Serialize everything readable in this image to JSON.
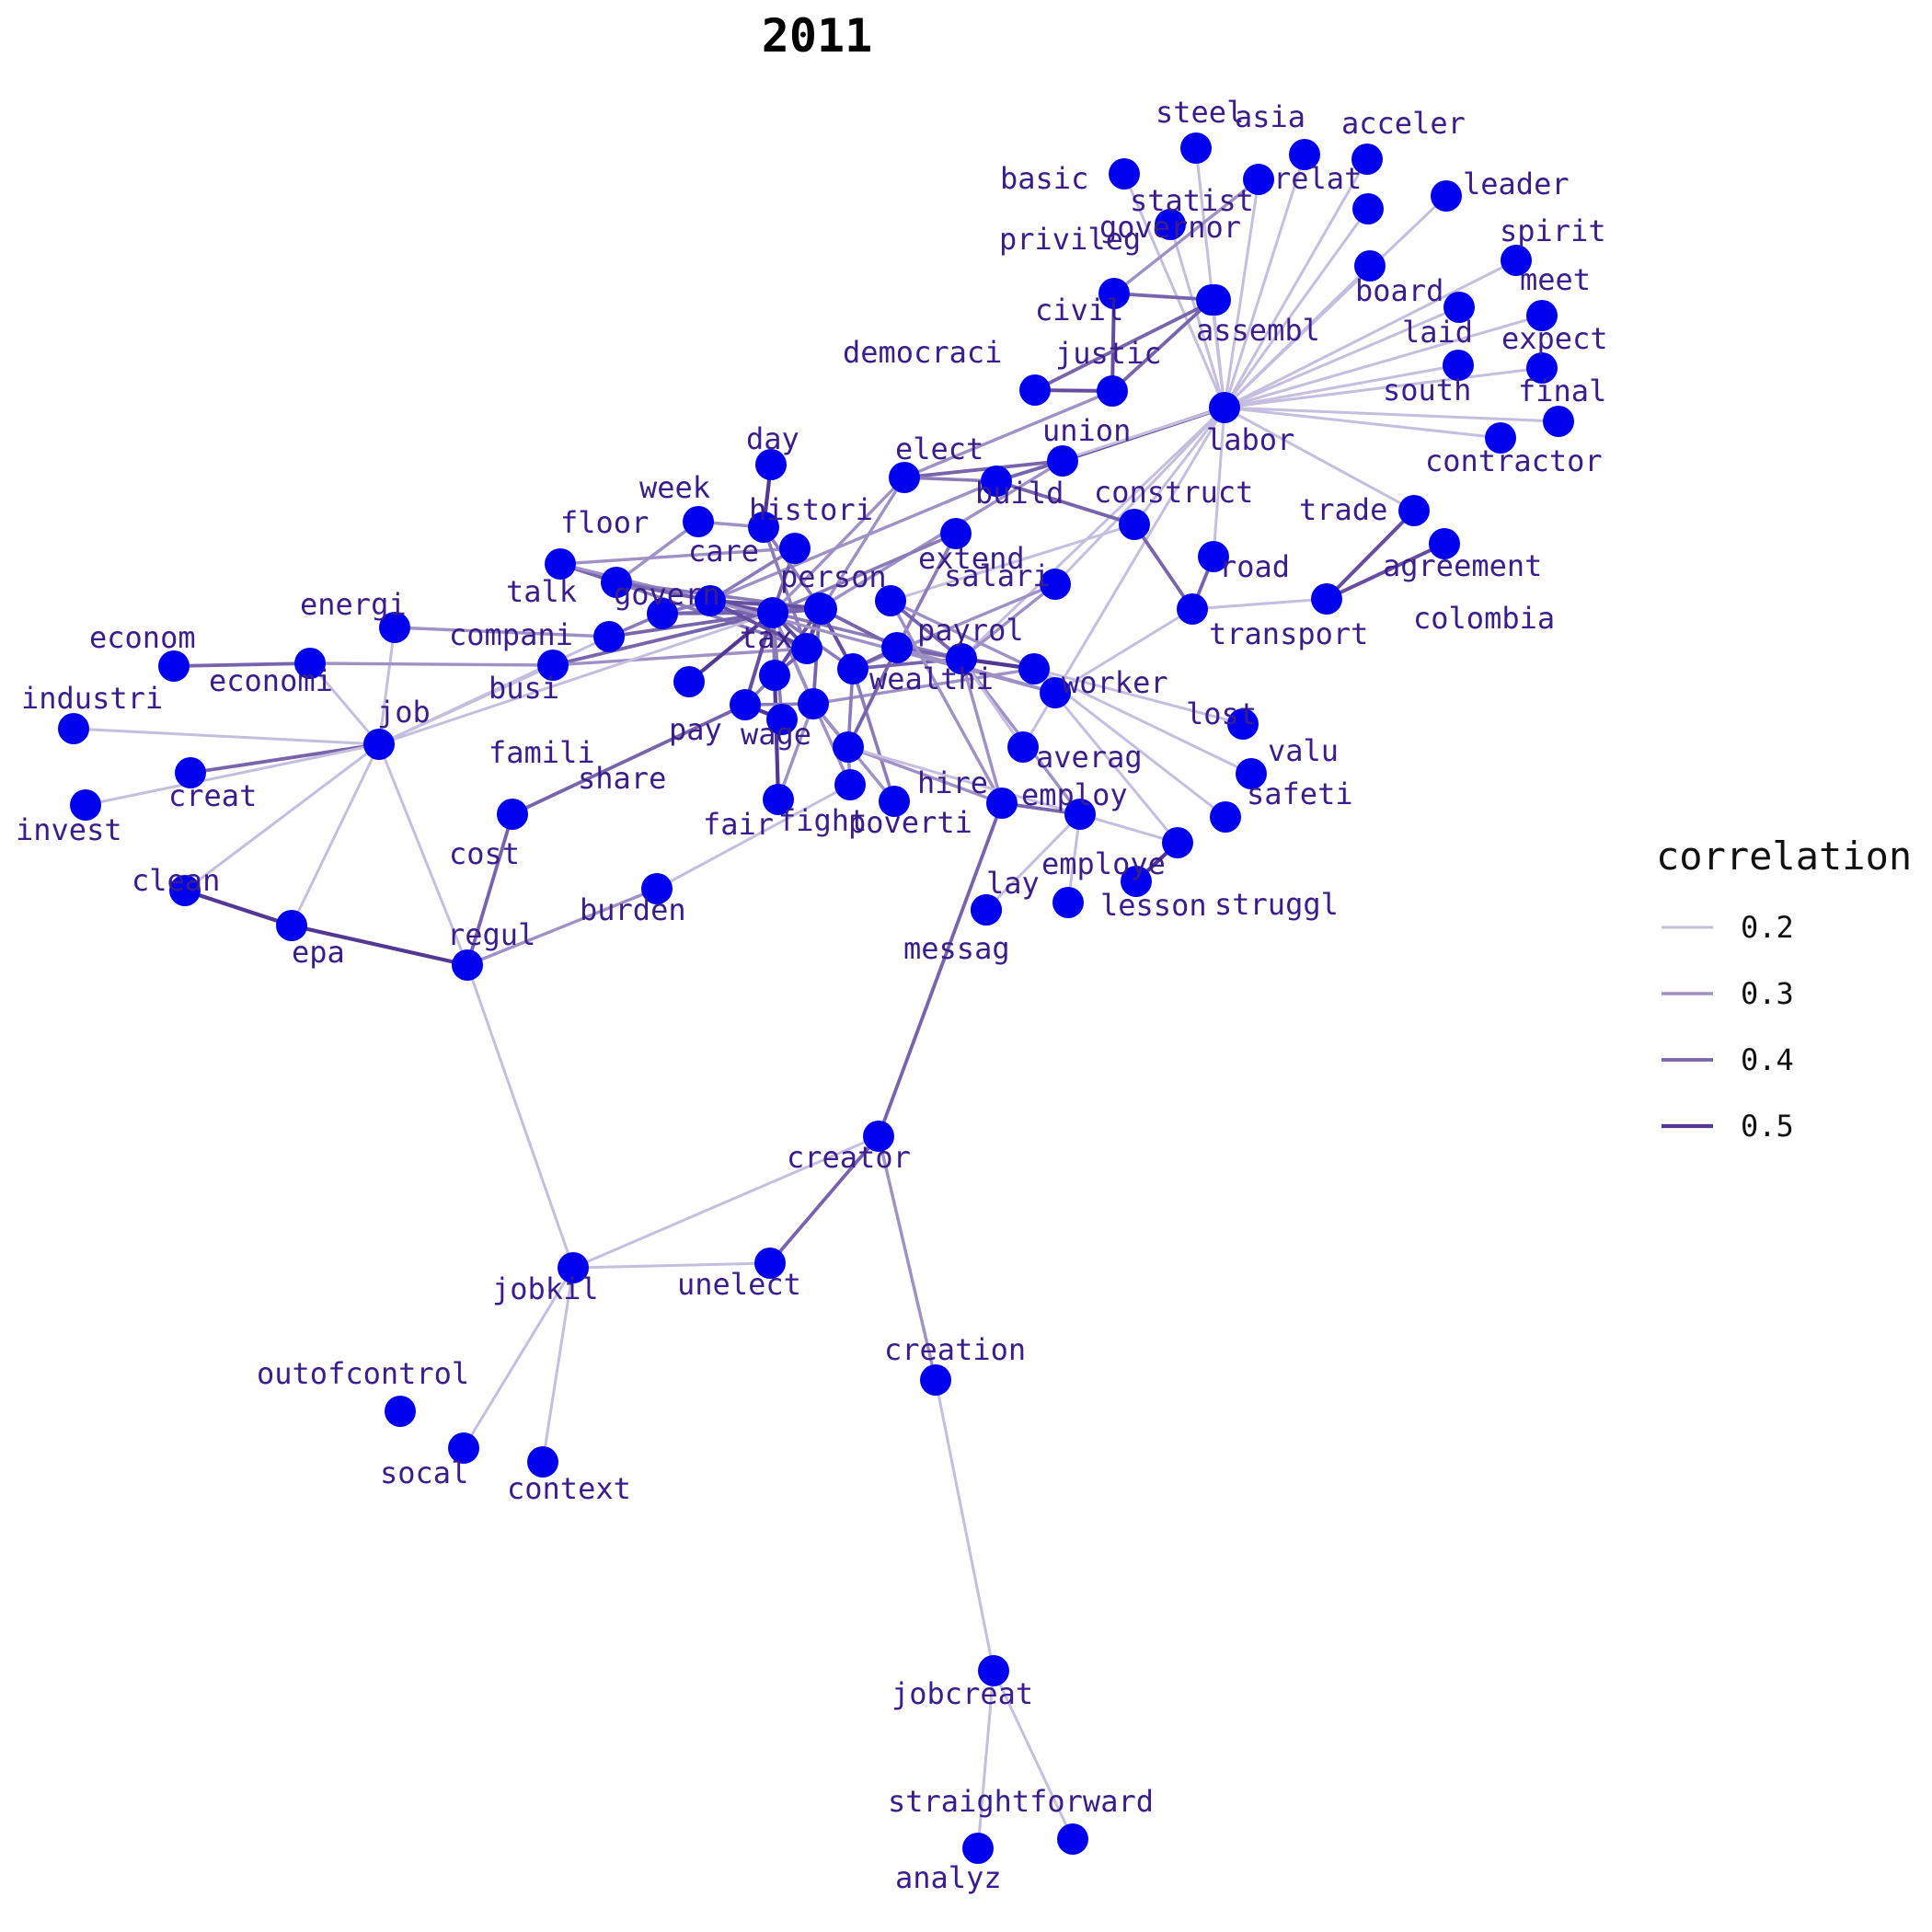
{
  "title": "2011",
  "colors": {
    "node": "#0000ee",
    "label": "#3a1d8c",
    "edge_min": "#d8d4ea",
    "edge_max": "#3f2188"
  },
  "legend": {
    "title": "correlation",
    "items": [
      {
        "label": "0.2",
        "value": 0.2
      },
      {
        "label": "0.3",
        "value": 0.3
      },
      {
        "label": "0.4",
        "value": 0.4
      },
      {
        "label": "0.5",
        "value": 0.5
      }
    ]
  },
  "nodes": [
    {
      "id": "steel",
      "label": "steel"
    },
    {
      "id": "asia",
      "label": "asia"
    },
    {
      "id": "acceler",
      "label": "acceler"
    },
    {
      "id": "basic",
      "label": "basic"
    },
    {
      "id": "statist",
      "label": "statist"
    },
    {
      "id": "relat",
      "label": "relat"
    },
    {
      "id": "leader",
      "label": "leader"
    },
    {
      "id": "spirit",
      "label": "spirit"
    },
    {
      "id": "governor",
      "label": "governor"
    },
    {
      "id": "privileg",
      "label": "privileg"
    },
    {
      "id": "board",
      "label": "board"
    },
    {
      "id": "meet",
      "label": "meet"
    },
    {
      "id": "civil",
      "label": "civil"
    },
    {
      "id": "assembl",
      "label": "assembl"
    },
    {
      "id": "laid",
      "label": "laid"
    },
    {
      "id": "expect",
      "label": "expect"
    },
    {
      "id": "democraci",
      "label": "democraci"
    },
    {
      "id": "justic",
      "label": "justic"
    },
    {
      "id": "south",
      "label": "south"
    },
    {
      "id": "final",
      "label": "final"
    },
    {
      "id": "labor",
      "label": "labor"
    },
    {
      "id": "union",
      "label": "union"
    },
    {
      "id": "contractor",
      "label": "contractor"
    },
    {
      "id": "day",
      "label": "day"
    },
    {
      "id": "elect",
      "label": "elect"
    },
    {
      "id": "week",
      "label": "week"
    },
    {
      "id": "histori",
      "label": "histori"
    },
    {
      "id": "build",
      "label": "build"
    },
    {
      "id": "construct",
      "label": "construct"
    },
    {
      "id": "trade",
      "label": "trade"
    },
    {
      "id": "floor",
      "label": "floor"
    },
    {
      "id": "care",
      "label": "care"
    },
    {
      "id": "extend",
      "label": "extend"
    },
    {
      "id": "salari",
      "label": "salari"
    },
    {
      "id": "agreement",
      "label": "agreement"
    },
    {
      "id": "talk",
      "label": "talk"
    },
    {
      "id": "person",
      "label": "person"
    },
    {
      "id": "road",
      "label": "road"
    },
    {
      "id": "energi",
      "label": "energi"
    },
    {
      "id": "govern",
      "label": "govern"
    },
    {
      "id": "colombia",
      "label": "colombia"
    },
    {
      "id": "econom",
      "label": "econom"
    },
    {
      "id": "compani",
      "label": "compani"
    },
    {
      "id": "payrol",
      "label": "payrol"
    },
    {
      "id": "worker",
      "label": "worker"
    },
    {
      "id": "transport",
      "label": "transport"
    },
    {
      "id": "tax",
      "label": "tax"
    },
    {
      "id": "busi",
      "label": "busi"
    },
    {
      "id": "economi",
      "label": "economi"
    },
    {
      "id": "wealthi",
      "label": "wealthi"
    },
    {
      "id": "industri",
      "label": "industri"
    },
    {
      "id": "averag",
      "label": "averag"
    },
    {
      "id": "lost",
      "label": "lost"
    },
    {
      "id": "job",
      "label": "job"
    },
    {
      "id": "pay",
      "label": "pay"
    },
    {
      "id": "famili",
      "label": "famili"
    },
    {
      "id": "share",
      "label": "share"
    },
    {
      "id": "wage",
      "label": "wage"
    },
    {
      "id": "valu",
      "label": "valu"
    },
    {
      "id": "fair",
      "label": "fair"
    },
    {
      "id": "creat",
      "label": "creat"
    },
    {
      "id": "hire",
      "label": "hire"
    },
    {
      "id": "employ",
      "label": "employ"
    },
    {
      "id": "safeti",
      "label": "safeti"
    },
    {
      "id": "fight",
      "label": "fight"
    },
    {
      "id": "poverti",
      "label": "poverti"
    },
    {
      "id": "cost",
      "label": "cost"
    },
    {
      "id": "invest",
      "label": "invest"
    },
    {
      "id": "employe",
      "label": "employe"
    },
    {
      "id": "struggl",
      "label": "struggl"
    },
    {
      "id": "clean",
      "label": "clean"
    },
    {
      "id": "lay",
      "label": "lay"
    },
    {
      "id": "lesson",
      "label": "lesson"
    },
    {
      "id": "burden",
      "label": "burden"
    },
    {
      "id": "epa",
      "label": "epa"
    },
    {
      "id": "messag",
      "label": "messag"
    },
    {
      "id": "regul",
      "label": "regul"
    },
    {
      "id": "creator",
      "label": "creator"
    },
    {
      "id": "jobkil",
      "label": "jobkil"
    },
    {
      "id": "unelect",
      "label": "unelect"
    },
    {
      "id": "creation",
      "label": "creation"
    },
    {
      "id": "outofcontrol",
      "label": "outofcontrol"
    },
    {
      "id": "socal",
      "label": "socal"
    },
    {
      "id": "context",
      "label": "context"
    },
    {
      "id": "jobcreat",
      "label": "jobcreat"
    },
    {
      "id": "straightforward",
      "label": "straightforward"
    },
    {
      "id": "analyz",
      "label": "analyz"
    },
    {
      "id": "hub1",
      "label": ""
    },
    {
      "id": "hub2",
      "label": ""
    },
    {
      "id": "hub3",
      "label": ""
    },
    {
      "id": "hub4",
      "label": ""
    },
    {
      "id": "hub5",
      "label": ""
    },
    {
      "id": "hub6",
      "label": ""
    },
    {
      "id": "hub7",
      "label": ""
    },
    {
      "id": "hub8",
      "label": ""
    }
  ],
  "edges": [
    {
      "source": "labor",
      "target": "steel",
      "weight": 0.2
    },
    {
      "source": "labor",
      "target": "asia",
      "weight": 0.2
    },
    {
      "source": "labor",
      "target": "acceler",
      "weight": 0.2
    },
    {
      "source": "labor",
      "target": "basic",
      "weight": 0.2
    },
    {
      "source": "labor",
      "target": "relat",
      "weight": 0.2
    },
    {
      "source": "labor",
      "target": "leader",
      "weight": 0.2
    },
    {
      "source": "labor",
      "target": "spirit",
      "weight": 0.2
    },
    {
      "source": "labor",
      "target": "governor",
      "weight": 0.2
    },
    {
      "source": "labor",
      "target": "board",
      "weight": 0.2
    },
    {
      "source": "labor",
      "target": "meet",
      "weight": 0.2
    },
    {
      "source": "labor",
      "target": "laid",
      "weight": 0.2
    },
    {
      "source": "labor",
      "target": "expect",
      "weight": 0.2
    },
    {
      "source": "labor",
      "target": "south",
      "weight": 0.2
    },
    {
      "source": "labor",
      "target": "final",
      "weight": 0.2
    },
    {
      "source": "labor",
      "target": "contractor",
      "weight": 0.2
    },
    {
      "source": "labor",
      "target": "assembl",
      "weight": 0.2
    },
    {
      "source": "labor",
      "target": "union",
      "weight": 0.45
    },
    {
      "source": "labor",
      "target": "trade",
      "weight": 0.2
    },
    {
      "source": "labor",
      "target": "construct",
      "weight": 0.2
    },
    {
      "source": "labor",
      "target": "road",
      "weight": 0.2
    },
    {
      "source": "labor",
      "target": "build",
      "weight": 0.2
    },
    {
      "source": "labor",
      "target": "salari",
      "weight": 0.2
    },
    {
      "source": "labor",
      "target": "payrol",
      "weight": 0.2
    },
    {
      "source": "labor",
      "target": "averag",
      "weight": 0.2
    },
    {
      "source": "labor",
      "target": "statist",
      "weight": 0.2
    },
    {
      "source": "statist",
      "target": "privileg",
      "weight": 0.3
    },
    {
      "source": "privileg",
      "target": "civil",
      "weight": 0.4
    },
    {
      "source": "privileg",
      "target": "justic",
      "weight": 0.45
    },
    {
      "source": "civil",
      "target": "democraci",
      "weight": 0.4
    },
    {
      "source": "democraci",
      "target": "justic",
      "weight": 0.45
    },
    {
      "source": "assembl",
      "target": "justic",
      "weight": 0.4
    },
    {
      "source": "justic",
      "target": "elect",
      "weight": 0.3
    },
    {
      "source": "union",
      "target": "elect",
      "weight": 0.4
    },
    {
      "source": "union",
      "target": "build",
      "weight": 0.4
    },
    {
      "source": "union",
      "target": "hub3",
      "weight": 0.3
    },
    {
      "source": "build",
      "target": "construct",
      "weight": 0.4
    },
    {
      "source": "build",
      "target": "elect",
      "weight": 0.35
    },
    {
      "source": "build",
      "target": "hub1",
      "weight": 0.3
    },
    {
      "source": "construct",
      "target": "transport",
      "weight": 0.4
    },
    {
      "source": "construct",
      "target": "hub5",
      "weight": 0.2
    },
    {
      "source": "road",
      "target": "transport",
      "weight": 0.4
    },
    {
      "source": "trade",
      "target": "colombia",
      "weight": 0.45
    },
    {
      "source": "agreement",
      "target": "colombia",
      "weight": 0.45
    },
    {
      "source": "transport",
      "target": "colombia",
      "weight": 0.2
    },
    {
      "source": "transport",
      "target": "hub6",
      "weight": 0.2
    },
    {
      "source": "day",
      "target": "histori",
      "weight": 0.5
    },
    {
      "source": "week",
      "target": "histori",
      "weight": 0.3
    },
    {
      "source": "week",
      "target": "talk",
      "weight": 0.3
    },
    {
      "source": "floor",
      "target": "care",
      "weight": 0.3
    },
    {
      "source": "floor",
      "target": "talk",
      "weight": 0.4
    },
    {
      "source": "floor",
      "target": "hub1",
      "weight": 0.3
    },
    {
      "source": "talk",
      "target": "person",
      "weight": 0.35
    },
    {
      "source": "talk",
      "target": "tax",
      "weight": 0.3
    },
    {
      "source": "talk",
      "target": "hub1",
      "weight": 0.4
    },
    {
      "source": "talk",
      "target": "hub2",
      "weight": 0.35
    },
    {
      "source": "care",
      "target": "tax",
      "weight": 0.4
    },
    {
      "source": "care",
      "target": "hub1",
      "weight": 0.35
    },
    {
      "source": "histori",
      "target": "person",
      "weight": 0.35
    },
    {
      "source": "histori",
      "target": "hub2",
      "weight": 0.35
    },
    {
      "source": "elect",
      "target": "person",
      "weight": 0.3
    },
    {
      "source": "elect",
      "target": "tax",
      "weight": 0.3
    },
    {
      "source": "extend",
      "target": "tax",
      "weight": 0.35
    },
    {
      "source": "extend",
      "target": "hub4",
      "weight": 0.35
    },
    {
      "source": "salari",
      "target": "wealthi",
      "weight": 0.3
    },
    {
      "source": "salari",
      "target": "payrol",
      "weight": 0.3
    },
    {
      "source": "person",
      "target": "govern",
      "weight": 0.4
    },
    {
      "source": "person",
      "target": "tax",
      "weight": 0.45
    },
    {
      "source": "person",
      "target": "hub2",
      "weight": 0.4
    },
    {
      "source": "govern",
      "target": "compani",
      "weight": 0.35
    },
    {
      "source": "govern",
      "target": "tax",
      "weight": 0.4
    },
    {
      "source": "govern",
      "target": "hub1",
      "weight": 0.35
    },
    {
      "source": "compani",
      "target": "energi",
      "weight": 0.3
    },
    {
      "source": "compani",
      "target": "tax",
      "weight": 0.4
    },
    {
      "source": "compani",
      "target": "job",
      "weight": 0.2
    },
    {
      "source": "energi",
      "target": "job",
      "weight": 0.2
    },
    {
      "source": "econom",
      "target": "economi",
      "weight": 0.4
    },
    {
      "source": "economi",
      "target": "busi",
      "weight": 0.3
    },
    {
      "source": "economi",
      "target": "job",
      "weight": 0.2
    },
    {
      "source": "busi",
      "target": "tax",
      "weight": 0.4
    },
    {
      "source": "busi",
      "target": "job",
      "weight": 0.2
    },
    {
      "source": "busi",
      "target": "hub2",
      "weight": 0.3
    },
    {
      "source": "tax",
      "target": "pay",
      "weight": 0.45
    },
    {
      "source": "tax",
      "target": "wage",
      "weight": 0.35
    },
    {
      "source": "tax",
      "target": "wealthi",
      "weight": 0.35
    },
    {
      "source": "tax",
      "target": "payrol",
      "weight": 0.35
    },
    {
      "source": "tax",
      "target": "hub1",
      "weight": 0.45
    },
    {
      "source": "tax",
      "target": "hub2",
      "weight": 0.45
    },
    {
      "source": "tax",
      "target": "hub3",
      "weight": 0.4
    },
    {
      "source": "tax",
      "target": "fight",
      "weight": 0.3
    },
    {
      "source": "tax",
      "target": "fair",
      "weight": 0.35
    },
    {
      "source": "tax",
      "target": "share",
      "weight": 0.35
    },
    {
      "source": "tax",
      "target": "job",
      "weight": 0.2
    },
    {
      "source": "famili",
      "target": "tax",
      "weight": 0.5
    },
    {
      "source": "share",
      "target": "pay",
      "weight": 0.5
    },
    {
      "source": "fair",
      "target": "hub7",
      "weight": 0.5
    },
    {
      "source": "fair",
      "target": "wage",
      "weight": 0.3
    },
    {
      "source": "pay",
      "target": "wage",
      "weight": 0.35
    },
    {
      "source": "pay",
      "target": "hub7",
      "weight": 0.35
    },
    {
      "source": "pay",
      "target": "cost",
      "weight": 0.4
    },
    {
      "source": "wage",
      "target": "hub3",
      "weight": 0.4
    },
    {
      "source": "wage",
      "target": "hub8",
      "weight": 0.35
    },
    {
      "source": "wage",
      "target": "worker",
      "weight": 0.3
    },
    {
      "source": "wage",
      "target": "poverti",
      "weight": 0.3
    },
    {
      "source": "wealthi",
      "target": "hub3",
      "weight": 0.45
    },
    {
      "source": "wealthi",
      "target": "hub4",
      "weight": 0.4
    },
    {
      "source": "wealthi",
      "target": "payrol",
      "weight": 0.4
    },
    {
      "source": "wealthi",
      "target": "poverti",
      "weight": 0.35
    },
    {
      "source": "wealthi",
      "target": "hub8",
      "weight": 0.35
    },
    {
      "source": "payrol",
      "target": "worker",
      "weight": 0.5
    },
    {
      "source": "payrol",
      "target": "hub5",
      "weight": 0.4
    },
    {
      "source": "payrol",
      "target": "hire",
      "weight": 0.3
    },
    {
      "source": "payrol",
      "target": "employ",
      "weight": 0.3
    },
    {
      "source": "payrol",
      "target": "averag",
      "weight": 0.2
    },
    {
      "source": "payrol",
      "target": "hub4",
      "weight": 0.4
    },
    {
      "source": "worker",
      "target": "hub5",
      "weight": 0.3
    },
    {
      "source": "worker",
      "target": "valu",
      "weight": 0.2
    },
    {
      "source": "worker",
      "target": "safeti",
      "weight": 0.2
    },
    {
      "source": "worker",
      "target": "lost",
      "weight": 0.2
    },
    {
      "source": "worker",
      "target": "employe",
      "weight": 0.2
    },
    {
      "source": "hub5",
      "target": "hire",
      "weight": 0.3
    },
    {
      "source": "hire",
      "target": "employ",
      "weight": 0.4
    },
    {
      "source": "hire",
      "target": "creator",
      "weight": 0.4
    },
    {
      "source": "hire",
      "target": "hub8",
      "weight": 0.3
    },
    {
      "source": "employ",
      "target": "lay",
      "weight": 0.2
    },
    {
      "source": "employ",
      "target": "lesson",
      "weight": 0.2
    },
    {
      "source": "employe",
      "target": "struggl",
      "weight": 0.5
    },
    {
      "source": "employe",
      "target": "hub8",
      "weight": 0.2
    },
    {
      "source": "hub8",
      "target": "fight",
      "weight": 0.3
    },
    {
      "source": "hub1",
      "target": "hub2",
      "weight": 0.45
    },
    {
      "source": "hub1",
      "target": "hub3",
      "weight": 0.45
    },
    {
      "source": "hub2",
      "target": "hub3",
      "weight": 0.45
    },
    {
      "source": "hub3",
      "target": "hub4",
      "weight": 0.4
    },
    {
      "source": "hub2",
      "target": "hub7",
      "weight": 0.4
    },
    {
      "source": "hub3",
      "target": "hub7",
      "weight": 0.45
    },
    {
      "source": "hub4",
      "target": "hub8",
      "weight": 0.4
    },
    {
      "source": "hub6",
      "target": "hub4",
      "weight": 0.3
    },
    {
      "source": "hub6",
      "target": "hub1",
      "weight": 0.3
    },
    {
      "source": "fight",
      "target": "burden",
      "weight": 0.2
    },
    {
      "source": "job",
      "target": "industri",
      "weight": 0.2
    },
    {
      "source": "job",
      "target": "creat",
      "weight": 0.4
    },
    {
      "source": "job",
      "target": "invest",
      "weight": 0.2
    },
    {
      "source": "job",
      "target": "clean",
      "weight": 0.2
    },
    {
      "source": "job",
      "target": "epa",
      "weight": 0.2
    },
    {
      "source": "job",
      "target": "regul",
      "weight": 0.2
    },
    {
      "source": "clean",
      "target": "epa",
      "weight": 0.5
    },
    {
      "source": "epa",
      "target": "regul",
      "weight": 0.5
    },
    {
      "source": "regul",
      "target": "cost",
      "weight": 0.4
    },
    {
      "source": "regul",
      "target": "burden",
      "weight": 0.3
    },
    {
      "source": "regul",
      "target": "jobkil",
      "weight": 0.2
    },
    {
      "source": "creator",
      "target": "jobkil",
      "weight": 0.2
    },
    {
      "source": "creator",
      "target": "unelect",
      "weight": 0.4
    },
    {
      "source": "creator",
      "target": "creation",
      "weight": 0.3
    },
    {
      "source": "jobkil",
      "target": "unelect",
      "weight": 0.2
    },
    {
      "source": "jobkil",
      "target": "socal",
      "weight": 0.2
    },
    {
      "source": "jobkil",
      "target": "context",
      "weight": 0.2
    },
    {
      "source": "creation",
      "target": "jobcreat",
      "weight": 0.2
    },
    {
      "source": "jobcreat",
      "target": "straightforward",
      "weight": 0.2
    },
    {
      "source": "jobcreat",
      "target": "analyz",
      "weight": 0.2
    }
  ]
}
